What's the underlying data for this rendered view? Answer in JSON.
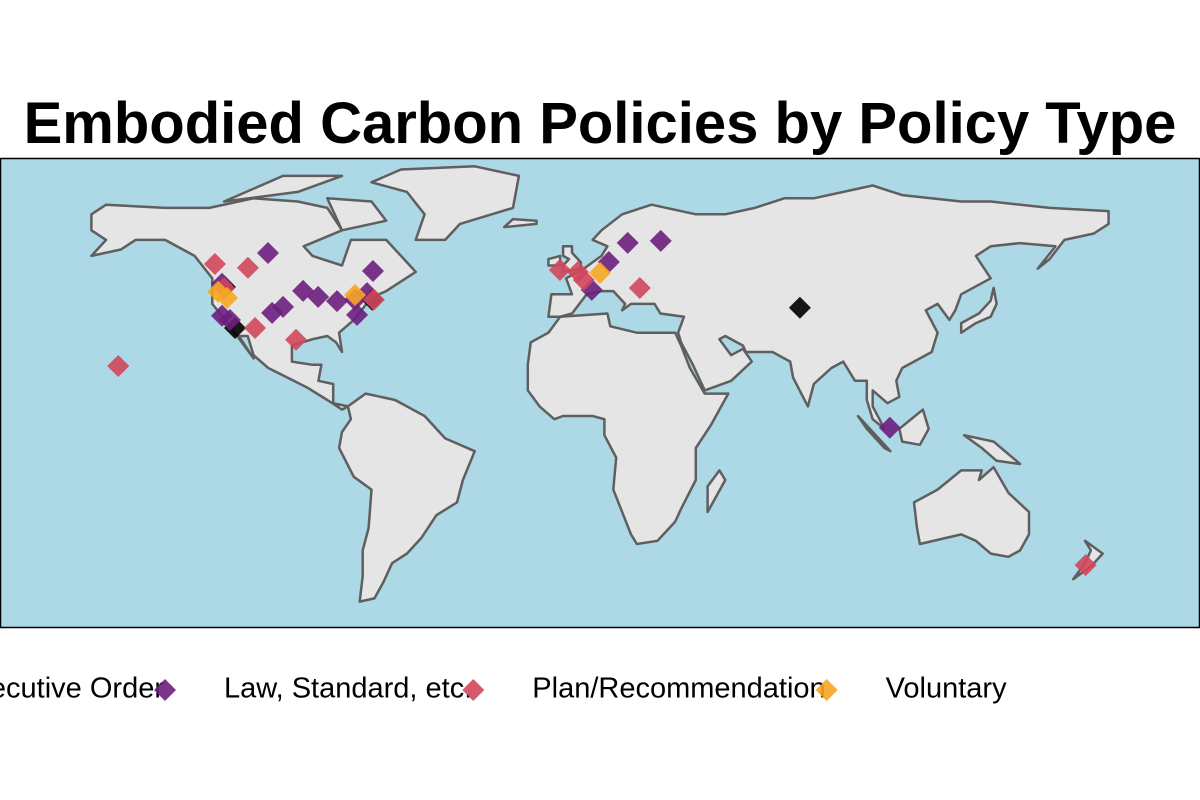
{
  "chart_data": {
    "type": "scatter",
    "title": "Embodied Carbon Policies by Policy Type",
    "xlim": [
      -196,
      211
    ],
    "ylim": [
      -61.25,
      85.6
    ],
    "series": [
      {
        "name": "Executive Order",
        "color": "#000000",
        "x": [
          -119.7,
          -116.3,
          -69.8,
          75.3
        ],
        "values": [
          45.3,
          32.5,
          41.3,
          38.8
        ]
      },
      {
        "name": "Law, Standard, etc.",
        "color": "#6b1f7d",
        "x": [
          -105.1,
          -69.5,
          -120.7,
          -120.7,
          -118.0,
          -103.7,
          -100.0,
          -93.2,
          -88.1,
          -81.7,
          -75.6,
          -71.5,
          -74.9,
          4.7,
          10.5,
          16.9,
          28.1,
          105.8
        ],
        "values": [
          55.9,
          50.3,
          46.3,
          36.3,
          35.0,
          37.2,
          39.1,
          44.1,
          42.2,
          40.9,
          41.3,
          43.4,
          36.6,
          44.4,
          53.1,
          59.1,
          59.7,
          1.3
        ]
      },
      {
        "name": "Plan/Recommendation",
        "color": "#d0475b",
        "x": [
          -123.1,
          -111.9,
          -109.5,
          -95.6,
          -155.9,
          -6.1,
          0.0,
          2.0,
          21.0,
          172.2,
          -69.2,
          -120.0
        ],
        "values": [
          52.5,
          51.3,
          32.5,
          28.8,
          20.6,
          50.6,
          50.0,
          47.5,
          45.0,
          -41.6,
          41.3,
          45.0
        ]
      },
      {
        "name": "Voluntary",
        "color": "#f6a623",
        "x": [
          -119.0,
          -122.0,
          7.5,
          -75.6
        ],
        "values": [
          41.9,
          43.8,
          49.7,
          42.8
        ]
      }
    ]
  }
}
